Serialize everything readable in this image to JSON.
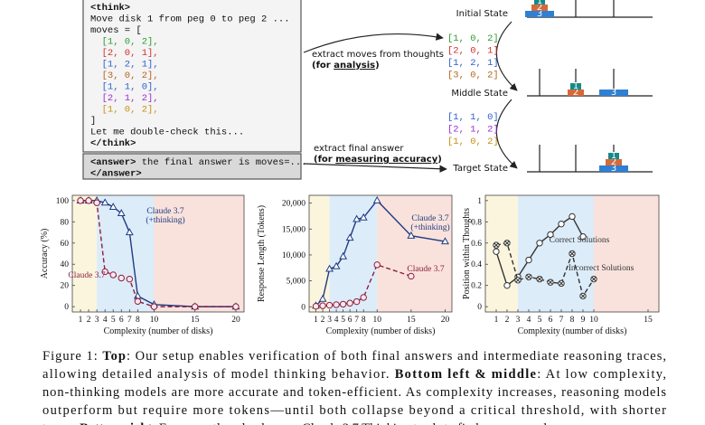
{
  "diagram": {
    "code_lines": [
      {
        "text": "<think>",
        "bold": true
      },
      {
        "text": "Move disk 1 from peg 0 to peg 2 ..."
      },
      {
        "text": "moves = ["
      },
      {
        "text": "  [1, 0, 2],",
        "color": "#2e9d2e"
      },
      {
        "text": "  [2, 0, 1],",
        "color": "#d03030"
      },
      {
        "text": "  [1, 2, 1],",
        "color": "#2f5fd0"
      },
      {
        "text": "  [3, 0, 2],",
        "color": "#b5651d"
      },
      {
        "text": "  [1, 1, 0],",
        "color": "#2f5fd0"
      },
      {
        "text": "  [2, 1, 2],",
        "color": "#9b30d0"
      },
      {
        "text": "  [1, 0, 2],",
        "color": "#c89010"
      },
      {
        "text": "]"
      },
      {
        "text": "Let me double-check this..."
      },
      {
        "text": "</think>",
        "bold": true
      }
    ],
    "answer_lines": [
      [
        {
          "t": "<answer>",
          "b": true
        },
        {
          "t": " the final answer is moves=..."
        }
      ],
      [
        {
          "t": "</answer>",
          "b": true
        }
      ]
    ],
    "arrow_1": {
      "text": "extract moves  from thoughts",
      "note": [
        {
          "t": "(for "
        },
        {
          "t": "analysis",
          "u": true
        },
        {
          "t": ")"
        }
      ]
    },
    "arrow_2": {
      "text": "extract final answer",
      "note": [
        {
          "t": "(for "
        },
        {
          "t": "measuring accuracy",
          "u": true
        },
        {
          "t": ")"
        }
      ]
    },
    "moves_1": [
      {
        "text": "[1, 0, 2]",
        "color": "#2e9d2e"
      },
      {
        "text": "[2, 0, 1]",
        "color": "#d03030"
      },
      {
        "text": "[1, 2, 1]",
        "color": "#2f5fd0"
      },
      {
        "text": "[3, 0, 2]",
        "color": "#b5651d"
      }
    ],
    "moves_2": [
      {
        "text": "[1, 1, 0]",
        "color": "#2f5fd0"
      },
      {
        "text": "[2, 1, 2]",
        "color": "#9b30d0"
      },
      {
        "text": "[1, 0, 2]",
        "color": "#c89010"
      }
    ],
    "states": [
      {
        "label": "Initial State",
        "pegs": [
          [
            "3",
            "2",
            "1"
          ],
          [],
          []
        ]
      },
      {
        "label": "Middle State",
        "pegs": [
          [],
          [
            "2",
            "1"
          ],
          [
            "3"
          ]
        ]
      },
      {
        "label": "Target State",
        "pegs": [
          [],
          [],
          [
            "3",
            "2",
            "1"
          ]
        ]
      }
    ]
  },
  "chart_data": [
    {
      "type": "line",
      "ylabel": "Accuracy (%)",
      "xlabel": "Complexity (number of disks)",
      "xlim": [
        0,
        21
      ],
      "ylim": [
        -5,
        105
      ],
      "xticks": [
        1,
        2,
        3,
        4,
        5,
        6,
        7,
        8,
        10,
        15,
        20
      ],
      "yticks": [
        0,
        20,
        40,
        60,
        80,
        100
      ],
      "regions": [
        {
          "x": [
            0,
            3
          ],
          "color": "#fcf5dd"
        },
        {
          "x": [
            3,
            10
          ],
          "color": "#dcecf9"
        },
        {
          "x": [
            10,
            21
          ],
          "color": "#f9e2dc"
        }
      ],
      "series": [
        {
          "label": [
            "Claude 3.7",
            "(+thinking)"
          ],
          "color": "#1f3b82",
          "marker": "triangle",
          "dashed": false,
          "x": [
            1,
            2,
            3,
            4,
            5,
            6,
            7,
            8,
            10,
            15,
            20
          ],
          "values": [
            100,
            100,
            100,
            98,
            94,
            88,
            70,
            10,
            2,
            0,
            0
          ]
        },
        {
          "label": [
            "Claude 3.7"
          ],
          "color": "#8c1d3f",
          "marker": "circle",
          "dashed": true,
          "x": [
            1,
            2,
            3,
            4,
            5,
            6,
            7,
            8,
            10,
            15,
            20
          ],
          "values": [
            100,
            100,
            98,
            33,
            30,
            27,
            26,
            5,
            0,
            0,
            0
          ]
        }
      ]
    },
    {
      "type": "line",
      "ylabel": "Response Length (Tokens)",
      "xlabel": "Complexity (number of disks)",
      "xlim": [
        0,
        21
      ],
      "ylim": [
        -1000,
        21500
      ],
      "xticks": [
        1,
        2,
        3,
        4,
        5,
        6,
        7,
        8,
        10,
        15,
        20
      ],
      "yticks": [
        0,
        {
          "value": 5000,
          "label": "5,000"
        },
        {
          "value": 10000,
          "label": "10,000"
        },
        {
          "value": 15000,
          "label": "15,000"
        },
        {
          "value": 20000,
          "label": "20,000"
        }
      ],
      "regions": [
        {
          "x": [
            0,
            3
          ],
          "color": "#fcf5dd"
        },
        {
          "x": [
            3,
            10
          ],
          "color": "#dcecf9"
        },
        {
          "x": [
            10,
            21
          ],
          "color": "#f9e2dc"
        }
      ],
      "series": [
        {
          "label": [
            "Claude 3.7",
            "(+thinking)"
          ],
          "color": "#1f3b82",
          "marker": "triangle",
          "dashed": false,
          "x": [
            1,
            2,
            3,
            4,
            5,
            6,
            7,
            8,
            10,
            15,
            20
          ],
          "values": [
            200,
            1500,
            7300,
            7800,
            9700,
            13300,
            16900,
            17200,
            20500,
            13700,
            12600
          ]
        },
        {
          "label": [
            "Claude 3.7"
          ],
          "color": "#8c1d3f",
          "marker": "circle",
          "dashed": true,
          "x": [
            1,
            2,
            3,
            4,
            5,
            6,
            7,
            8,
            10,
            15
          ],
          "values": [
            100,
            200,
            300,
            400,
            500,
            700,
            1000,
            1800,
            8100,
            5900
          ]
        }
      ]
    },
    {
      "type": "line",
      "ylabel": "Position within Thoughts",
      "xlabel": "Complexity (number of disks)",
      "xlim": [
        0,
        16
      ],
      "ylim": [
        -0.05,
        1.05
      ],
      "xticks": [
        1,
        2,
        3,
        4,
        5,
        6,
        7,
        8,
        9,
        10,
        15
      ],
      "yticks": [
        0,
        0.2,
        0.4,
        0.6,
        0.8,
        1
      ],
      "regions": [
        {
          "x": [
            0,
            3
          ],
          "color": "#fcf5dd"
        },
        {
          "x": [
            3,
            10
          ],
          "color": "#dcecf9"
        },
        {
          "x": [
            10,
            16
          ],
          "color": "#f9e2dc"
        }
      ],
      "series": [
        {
          "label": [
            "Correct Solutions"
          ],
          "color": "#333333",
          "marker": "circle",
          "dashed": false,
          "x": [
            1,
            2,
            3,
            4,
            5,
            6,
            7,
            8,
            9
          ],
          "values": [
            0.52,
            0.2,
            0.28,
            0.44,
            0.6,
            0.68,
            0.78,
            0.85,
            0.66
          ]
        },
        {
          "label": [
            "Incorrect Solutions"
          ],
          "color": "#333333",
          "marker": "xcircle",
          "dashed": true,
          "x": [
            1,
            2,
            3,
            4,
            5,
            6,
            7,
            8,
            9,
            10
          ],
          "values": [
            0.58,
            0.6,
            0.25,
            0.28,
            0.26,
            0.23,
            0.22,
            0.5,
            0.1,
            0.26
          ]
        }
      ]
    }
  ],
  "caption": [
    [
      {
        "t": "Figure 1: "
      },
      {
        "t": "Top",
        "b": true
      },
      {
        "t": ": Our setup enables verification of both final answers and intermediate reasoning traces,"
      }
    ],
    [
      {
        "t": "allowing detailed analysis of model thinking behavior. "
      },
      {
        "t": "Bottom left & middle",
        "b": true
      },
      {
        "t": ": At low complexity,"
      }
    ],
    [
      {
        "t": "non-thinking models are more accurate and token-efficient. As complexity increases, reasoning models"
      }
    ],
    [
      {
        "t": "outperform but require more tokens—until both collapse beyond a critical threshold, with shorter"
      }
    ],
    [
      {
        "t": "traces. "
      },
      {
        "t": "Bottom right",
        "b": true
      },
      {
        "t": ": For correctly solved cases, Claude 3.7 Thinking tends to find answers early"
      }
    ]
  ]
}
